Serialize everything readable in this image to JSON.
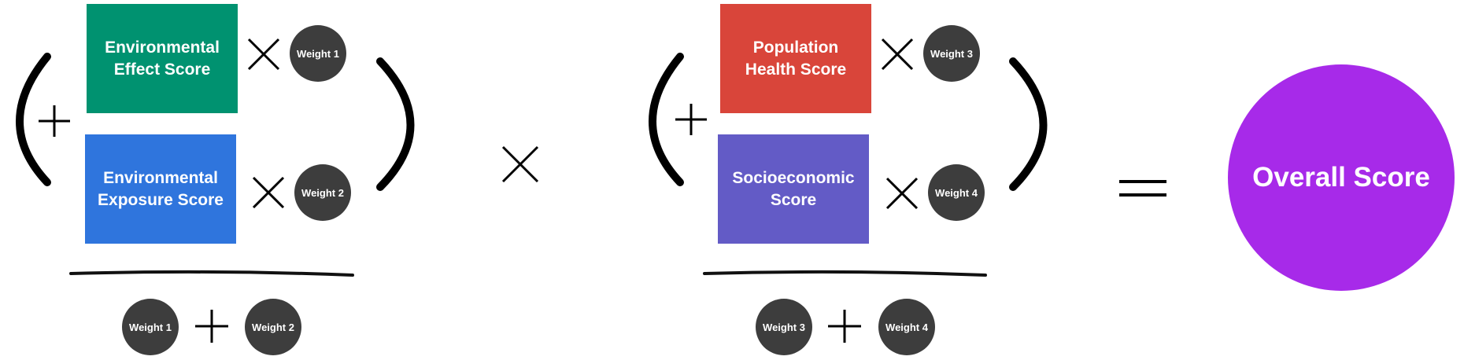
{
  "left_group": {
    "box_top": {
      "label": "Environmental Effect Score",
      "color": "#009270"
    },
    "box_bottom": {
      "label": "Environmental Exposure Score",
      "color": "#2f75dd"
    },
    "weight_top": "Weight 1",
    "weight_bottom": "Weight 2",
    "denominator": [
      "Weight 1",
      "Weight 2"
    ]
  },
  "right_group": {
    "box_top": {
      "label": "Population Health Score",
      "color": "#d9453a"
    },
    "box_bottom": {
      "label": "Socioeconomic Score",
      "color": "#635bc6"
    },
    "weight_top": "Weight 3",
    "weight_bottom": "Weight 4",
    "denominator": [
      "Weight 3",
      "Weight 4"
    ]
  },
  "result": {
    "label": "Overall Score",
    "color": "#a72ae9"
  },
  "colors": {
    "weight_circle": "#3d3d3d",
    "symbol": "#000000"
  },
  "operators": [
    "plus-icon",
    "times-icon",
    "equals-icon",
    "open-paren-icon",
    "close-paren-icon",
    "fraction-bar"
  ]
}
